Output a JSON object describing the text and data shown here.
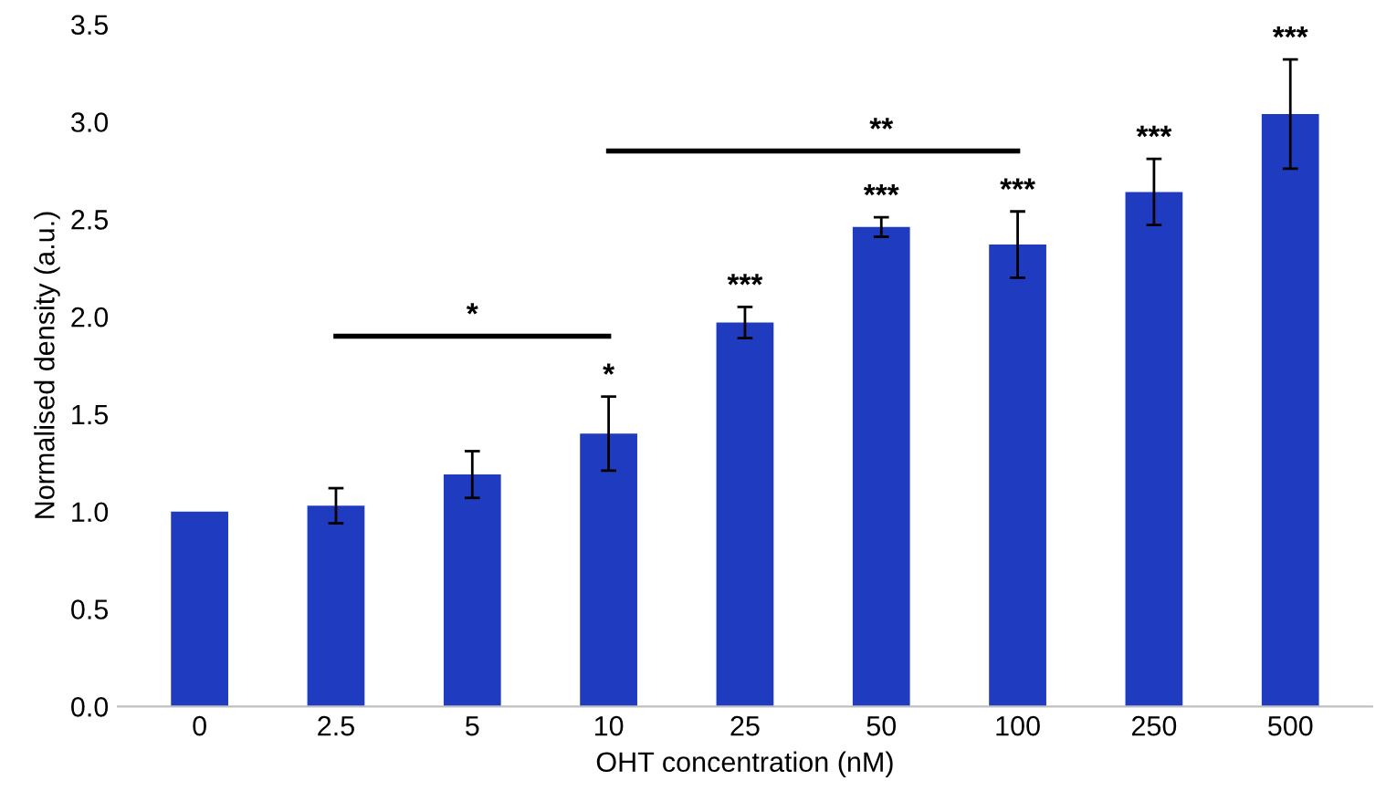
{
  "chart_data": {
    "type": "bar",
    "xlabel": "OHT concentration (nM)",
    "ylabel": "Normalised density (a.u.)",
    "categories": [
      "0",
      "2.5",
      "5",
      "10",
      "25",
      "50",
      "100",
      "250",
      "500"
    ],
    "series": [
      {
        "color": "#1f3bbf",
        "values": [
          1.0,
          1.03,
          1.19,
          1.4,
          1.97,
          2.46,
          2.37,
          2.64,
          3.04
        ],
        "errors": [
          null,
          0.09,
          0.12,
          0.19,
          0.08,
          0.05,
          0.17,
          0.17,
          0.28
        ]
      },
      {
        "type": "line",
        "color": "#000000",
        "values": [
          null,
          1.9,
          1.9,
          1.9,
          null,
          null,
          null,
          null,
          null
        ]
      },
      {
        "type": "line",
        "color": "#000000",
        "values": [
          null,
          null,
          null,
          2.85,
          2.85,
          2.85,
          2.85,
          null,
          null
        ]
      }
    ],
    "ylim": [
      0,
      3.5
    ],
    "yticks": [
      {
        "value": 0,
        "label": "0.0"
      },
      {
        "value": 0.5,
        "label": "0.5"
      },
      {
        "value": 1,
        "label": "1.0"
      },
      {
        "value": 1.5,
        "label": "1.5"
      },
      {
        "value": 2,
        "label": "2.0"
      },
      {
        "value": 2.5,
        "label": "2.5"
      },
      {
        "value": 3,
        "label": "3.0"
      },
      {
        "value": 3.5,
        "label": "3.5"
      }
    ],
    "grid": false,
    "annotations": [
      {
        "text": "*",
        "x": "10",
        "y": 1.62
      },
      {
        "text": "***",
        "x": "25",
        "y": 2.08
      },
      {
        "text": "***",
        "x": "50",
        "y": 2.54
      },
      {
        "text": "***",
        "x": "100",
        "y": 2.57
      },
      {
        "text": "***",
        "x": "250",
        "y": 2.84
      },
      {
        "text": "***",
        "x": "500",
        "y": 3.35
      },
      {
        "text": "*",
        "x": "5",
        "y": 1.93
      },
      {
        "text": "**",
        "x": "50",
        "y": 2.88
      }
    ]
  }
}
